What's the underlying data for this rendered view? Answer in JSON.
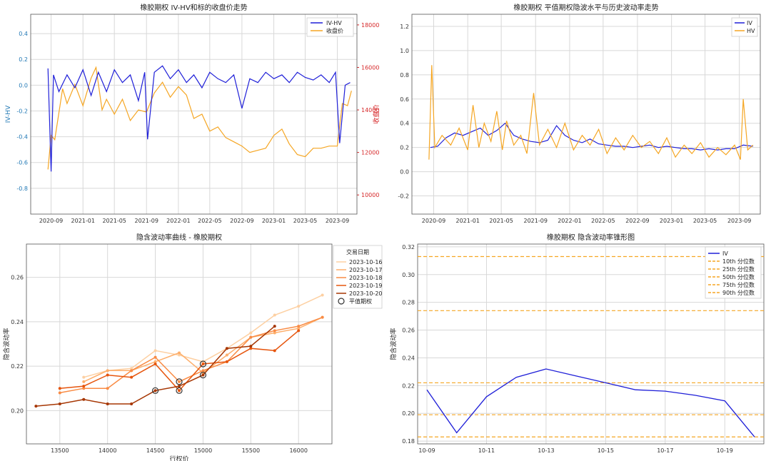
{
  "chart_data": [
    {
      "type": "line",
      "title": "橡胶期权 IV-HV和标的收盘价走势",
      "ylabel": "IV-HV",
      "y2label": "收盘价",
      "ylim": [
        -1.0,
        0.55
      ],
      "y2lim": [
        9100,
        18500
      ],
      "yticks": [
        "0.4",
        "0.2",
        "0.0",
        "-0.2",
        "-0.4",
        "-0.6",
        "-0.8"
      ],
      "y2ticks": [
        "18000",
        "16000",
        "14000",
        "12000",
        "10000"
      ],
      "xticks": [
        "2020-09",
        "2021-01",
        "2021-05",
        "2021-09",
        "2022-01",
        "2022-05",
        "2022-09",
        "2023-01",
        "2023-05",
        "2023-09"
      ],
      "xlim": [
        "2020-06-15",
        "2023-11-15"
      ],
      "grid": true,
      "legend": "top-right",
      "colors": {
        "iv_hv": "#1f1fd8",
        "close": "#f5a623",
        "y2": "#d62728",
        "y1": "#1f77b4"
      },
      "series": [
        {
          "name": "IV-HV",
          "x": [
            "2020-08-20",
            "2020-09-01",
            "2020-09-10",
            "2020-10-01",
            "2020-11-01",
            "2020-12-01",
            "2021-01-01",
            "2021-02-01",
            "2021-03-01",
            "2021-04-01",
            "2021-05-01",
            "2021-06-01",
            "2021-07-01",
            "2021-08-01",
            "2021-08-25",
            "2021-09-05",
            "2021-10-01",
            "2021-11-01",
            "2021-12-01",
            "2022-01-01",
            "2022-02-01",
            "2022-03-01",
            "2022-04-01",
            "2022-05-01",
            "2022-06-01",
            "2022-07-01",
            "2022-08-01",
            "2022-09-01",
            "2022-10-01",
            "2022-11-01",
            "2022-12-01",
            "2023-01-01",
            "2023-02-01",
            "2023-03-01",
            "2023-04-01",
            "2023-05-01",
            "2023-06-01",
            "2023-07-01",
            "2023-08-01",
            "2023-08-25",
            "2023-09-10",
            "2023-10-01",
            "2023-10-20"
          ],
          "values": [
            0.13,
            -0.67,
            0.08,
            -0.05,
            0.08,
            -0.02,
            0.12,
            -0.08,
            0.1,
            -0.05,
            0.12,
            0.02,
            0.08,
            -0.12,
            0.1,
            -0.42,
            0.1,
            0.15,
            0.05,
            0.12,
            0.02,
            0.08,
            -0.02,
            0.1,
            0.05,
            0.02,
            0.08,
            -0.18,
            0.05,
            0.02,
            0.1,
            0.05,
            0.08,
            0.02,
            0.1,
            0.06,
            0.04,
            0.08,
            0.02,
            0.1,
            -0.45,
            0.0,
            0.02
          ]
        },
        {
          "name": "收盘价",
          "x": [
            "2020-08-20",
            "2020-09-01",
            "2020-09-15",
            "2020-10-15",
            "2020-11-01",
            "2020-12-01",
            "2021-01-01",
            "2021-02-01",
            "2021-02-20",
            "2021-03-15",
            "2021-04-01",
            "2021-05-01",
            "2021-06-01",
            "2021-07-01",
            "2021-08-01",
            "2021-09-01",
            "2021-10-01",
            "2021-11-01",
            "2021-12-01",
            "2022-01-01",
            "2022-02-01",
            "2022-03-01",
            "2022-04-01",
            "2022-05-01",
            "2022-06-01",
            "2022-07-01",
            "2022-08-01",
            "2022-09-01",
            "2022-10-01",
            "2022-11-01",
            "2022-12-01",
            "2023-01-01",
            "2023-02-01",
            "2023-03-01",
            "2023-04-01",
            "2023-05-01",
            "2023-06-01",
            "2023-07-01",
            "2023-08-01",
            "2023-09-01",
            "2023-09-20",
            "2023-10-10",
            "2023-10-25"
          ],
          "values": [
            11200,
            12800,
            12600,
            15000,
            14300,
            15200,
            14200,
            15500,
            16000,
            14000,
            14500,
            13800,
            14500,
            13500,
            14000,
            13900,
            14800,
            15300,
            14600,
            15100,
            14700,
            13600,
            13800,
            13000,
            13200,
            12700,
            12500,
            12300,
            12000,
            12100,
            12200,
            12800,
            13100,
            12400,
            11900,
            11800,
            12200,
            12200,
            12300,
            12300,
            14300,
            14200,
            14900
          ]
        }
      ]
    },
    {
      "type": "line",
      "title": "橡胶期权 平值期权隐波水平与历史波动率走势",
      "ylim": [
        -0.35,
        1.3
      ],
      "yticks": [
        "1.2",
        "1.0",
        "0.8",
        "0.6",
        "0.4",
        "0.2",
        "0.0",
        "-0.2"
      ],
      "xticks": [
        "2020-09",
        "2021-01",
        "2021-05",
        "2021-09",
        "2022-01",
        "2022-05",
        "2022-09",
        "2023-01",
        "2023-05",
        "2023-09"
      ],
      "xlim": [
        "2020-06-15",
        "2023-11-15"
      ],
      "grid": true,
      "legend": "top-right",
      "colors": {
        "iv": "#1f1fd8",
        "hv": "#f5a623"
      },
      "series": [
        {
          "name": "IV",
          "x": [
            "2020-08-20",
            "2020-09-15",
            "2020-10-15",
            "2020-11-15",
            "2020-12-15",
            "2021-01-15",
            "2021-02-15",
            "2021-03-15",
            "2021-04-15",
            "2021-05-15",
            "2021-06-15",
            "2021-07-15",
            "2021-08-15",
            "2021-09-15",
            "2021-10-15",
            "2021-11-15",
            "2021-12-15",
            "2022-01-15",
            "2022-02-15",
            "2022-03-15",
            "2022-04-15",
            "2022-05-15",
            "2022-06-15",
            "2022-07-15",
            "2022-08-15",
            "2022-09-15",
            "2022-10-15",
            "2022-11-15",
            "2022-12-15",
            "2023-01-15",
            "2023-02-15",
            "2023-03-15",
            "2023-04-15",
            "2023-05-15",
            "2023-06-15",
            "2023-07-15",
            "2023-08-15",
            "2023-09-15",
            "2023-10-20"
          ],
          "values": [
            0.2,
            0.21,
            0.28,
            0.32,
            0.3,
            0.33,
            0.36,
            0.3,
            0.34,
            0.4,
            0.3,
            0.27,
            0.25,
            0.24,
            0.26,
            0.38,
            0.3,
            0.26,
            0.24,
            0.27,
            0.23,
            0.22,
            0.21,
            0.21,
            0.2,
            0.21,
            0.22,
            0.2,
            0.21,
            0.2,
            0.19,
            0.19,
            0.18,
            0.19,
            0.18,
            0.19,
            0.19,
            0.22,
            0.21
          ]
        },
        {
          "name": "HV",
          "x": [
            "2020-08-15",
            "2020-08-25",
            "2020-09-05",
            "2020-10-01",
            "2020-11-01",
            "2020-12-01",
            "2021-01-01",
            "2021-01-20",
            "2021-02-10",
            "2021-03-01",
            "2021-03-25",
            "2021-04-15",
            "2021-05-05",
            "2021-05-20",
            "2021-06-15",
            "2021-07-10",
            "2021-08-01",
            "2021-08-25",
            "2021-09-15",
            "2021-10-15",
            "2021-11-15",
            "2021-12-15",
            "2022-01-15",
            "2022-02-15",
            "2022-03-15",
            "2022-04-15",
            "2022-05-15",
            "2022-06-15",
            "2022-07-15",
            "2022-08-15",
            "2022-09-15",
            "2022-10-15",
            "2022-11-15",
            "2022-12-15",
            "2023-01-15",
            "2023-02-15",
            "2023-03-15",
            "2023-04-15",
            "2023-05-15",
            "2023-06-15",
            "2023-07-15",
            "2023-08-15",
            "2023-09-05",
            "2023-09-15",
            "2023-10-01",
            "2023-10-20"
          ],
          "values": [
            0.1,
            0.88,
            0.2,
            0.3,
            0.22,
            0.36,
            0.18,
            0.55,
            0.2,
            0.4,
            0.25,
            0.5,
            0.18,
            0.42,
            0.22,
            0.3,
            0.15,
            0.65,
            0.22,
            0.35,
            0.2,
            0.4,
            0.18,
            0.3,
            0.22,
            0.35,
            0.15,
            0.28,
            0.18,
            0.3,
            0.2,
            0.25,
            0.15,
            0.28,
            0.12,
            0.22,
            0.15,
            0.24,
            0.12,
            0.2,
            0.14,
            0.22,
            0.1,
            0.6,
            0.18,
            0.22
          ]
        }
      ]
    },
    {
      "type": "line",
      "title": "隐含波动率曲线 - 橡胶期权",
      "xlabel": "行权价",
      "ylabel": "隐含波动率",
      "xlim": [
        13150,
        16350
      ],
      "ylim": [
        0.185,
        0.275
      ],
      "xticks": [
        "13500",
        "14000",
        "14500",
        "15000",
        "15500",
        "16000"
      ],
      "yticks": [
        "0.26",
        "0.24",
        "0.22",
        "0.20"
      ],
      "grid": true,
      "legend": "top-right",
      "legend_title": "交易日期",
      "atm_label": "平值期权",
      "series": [
        {
          "name": "2023-10-16",
          "color": "#fdd0a2",
          "x": [
            13750,
            14000,
            14250,
            14500,
            14750,
            15000,
            15250,
            15500,
            15750,
            16000,
            16250
          ],
          "values": [
            0.215,
            0.218,
            0.219,
            0.227,
            0.225,
            0.222,
            0.228,
            0.235,
            0.243,
            0.247,
            0.252
          ]
        },
        {
          "name": "2023-10-17",
          "color": "#fdae6b",
          "x": [
            13750,
            14000,
            14250,
            14500,
            14750,
            15000,
            15250,
            15500,
            15750,
            16000,
            16250
          ],
          "values": [
            0.213,
            0.218,
            0.218,
            0.222,
            0.226,
            0.217,
            0.225,
            0.233,
            0.235,
            0.237,
            0.242
          ]
        },
        {
          "name": "2023-10-18",
          "color": "#f98b44",
          "x": [
            13500,
            13750,
            14000,
            14250,
            14500,
            14750,
            15000,
            15250,
            15500,
            15750,
            16000,
            16250
          ],
          "values": [
            0.208,
            0.21,
            0.21,
            0.218,
            0.224,
            0.213,
            0.218,
            0.222,
            0.233,
            0.236,
            0.238,
            0.242
          ]
        },
        {
          "name": "2023-10-19",
          "color": "#e6550d",
          "x": [
            13500,
            13750,
            14000,
            14250,
            14500,
            14750,
            15000,
            15250,
            15500,
            15750,
            16000
          ],
          "values": [
            0.21,
            0.211,
            0.216,
            0.215,
            0.221,
            0.209,
            0.221,
            0.222,
            0.228,
            0.227,
            0.236
          ]
        },
        {
          "name": "2023-10-20",
          "color": "#a63603",
          "x": [
            13250,
            13500,
            13750,
            14000,
            14250,
            14500,
            14750,
            15000,
            15250,
            15500,
            15750
          ],
          "values": [
            0.202,
            0.203,
            0.205,
            0.203,
            0.203,
            0.209,
            0.211,
            0.216,
            0.228,
            0.229,
            0.238
          ]
        }
      ],
      "atm_points": [
        [
          14500,
          0.209
        ],
        [
          14750,
          0.213
        ],
        [
          14750,
          0.209
        ],
        [
          15000,
          0.221
        ],
        [
          15000,
          0.216
        ]
      ]
    },
    {
      "type": "line",
      "title": "橡胶期权 隐含波动率锥形图",
      "ylabel": "隐含波动率",
      "ylim": [
        0.178,
        0.322
      ],
      "yticks": [
        "0.32",
        "0.30",
        "0.28",
        "0.26",
        "0.24",
        "0.22",
        "0.20",
        "0.18"
      ],
      "x": [
        "10-09",
        "10-10",
        "10-11",
        "10-12",
        "10-13",
        "10-14",
        "10-15",
        "10-16",
        "10-17",
        "10-18",
        "10-19",
        "10-20"
      ],
      "xticks": [
        "10-09",
        "10-11",
        "10-13",
        "10-15",
        "10-17",
        "10-19"
      ],
      "grid": true,
      "legend": "top-right",
      "series": [
        {
          "name": "IV",
          "color": "#1f1fd8",
          "values": [
            0.217,
            0.186,
            0.212,
            0.226,
            0.232,
            0.227,
            0.222,
            0.217,
            0.216,
            0.213,
            0.209,
            0.183
          ]
        }
      ],
      "percentiles": [
        {
          "name": "10th 分位数",
          "value": 0.183
        },
        {
          "name": "25th 分位数",
          "value": 0.199
        },
        {
          "name": "50th 分位数",
          "value": 0.222
        },
        {
          "name": "75th 分位数",
          "value": 0.274
        },
        {
          "name": "90th 分位数",
          "value": 0.313
        }
      ],
      "percentile_color": "#f5a623"
    }
  ]
}
